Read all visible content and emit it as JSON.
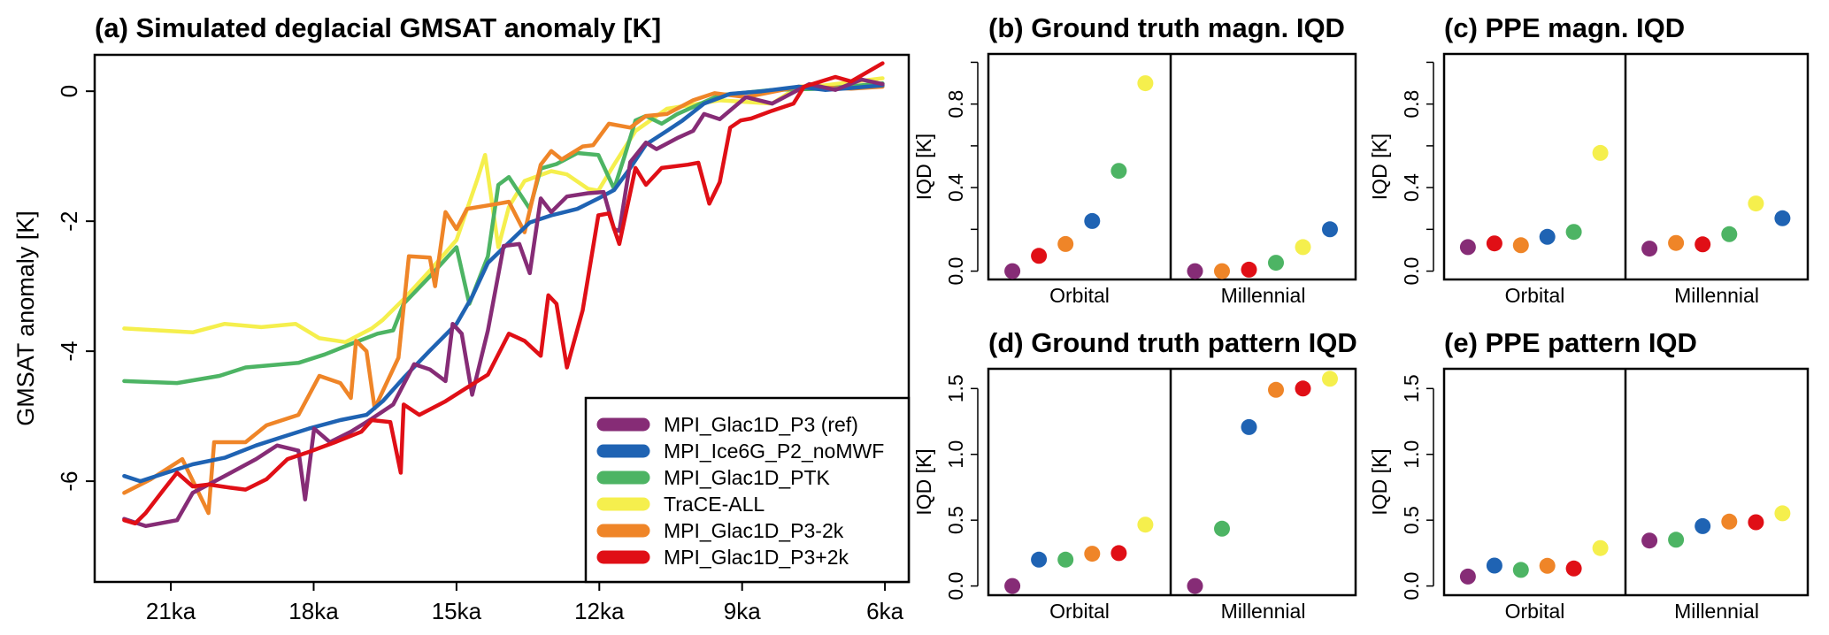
{
  "colors": {
    "MPI_Glac1D_P3 (ref)": "#862c76",
    "MPI_Ice6G_P2_noMWF": "#1f63b3",
    "MPI_Glac1D_PTK": "#4db464",
    "TraCE-ALL": "#f5ef4d",
    "MPI_Glac1D_P3-2k": "#ef8528",
    "MPI_Glac1D_P3+2k": "#e00f16"
  },
  "chart_data": [
    {
      "id": "a",
      "type": "line",
      "title": "(a) Simulated deglacial GMSAT anomaly [K]",
      "xlabel": "",
      "ylabel": "GMSAT anomaly [K]",
      "xlim": [
        22.6,
        5.5
      ],
      "ylim": [
        -7.55,
        0.56
      ],
      "xticks": [
        21,
        18,
        15,
        12,
        9,
        6
      ],
      "xtick_labels": [
        "21ka",
        "18ka",
        "15ka",
        "12ka",
        "9ka",
        "6ka"
      ],
      "yticks": [
        0,
        -2,
        -4,
        -6
      ],
      "ytick_labels": [
        "0",
        "-2",
        "-4",
        "-6"
      ],
      "grid": false,
      "legend_position": "bottom-right",
      "legend": [
        "MPI_Glac1D_P3 (ref)",
        "MPI_Ice6G_P2_noMWF",
        "MPI_Glac1D_PTK",
        "TraCE-ALL",
        "MPI_Glac1D_P3-2k",
        "MPI_Glac1D_P3+2k"
      ],
      "draw_order": [
        "TraCE-ALL",
        "MPI_Glac1D_PTK",
        "MPI_Glac1D_P3-2k",
        "MPI_Ice6G_P2_noMWF",
        "MPI_Glac1D_P3 (ref)",
        "MPI_Glac1D_P3+2k"
      ],
      "series": [
        {
          "name": "MPI_Glac1D_P3 (ref)",
          "x": [
            21.98,
            21.53,
            20.87,
            20.54,
            19.87,
            19.21,
            18.77,
            18.32,
            18.18,
            17.99,
            17.66,
            17.22,
            16.78,
            16.33,
            15.89,
            15.56,
            15.23,
            15.08,
            14.89,
            14.67,
            14.34,
            14.01,
            13.68,
            13.46,
            13.23,
            13.01,
            12.68,
            12.24,
            11.91,
            11.69,
            11.58,
            11.35,
            11.02,
            10.8,
            10.36,
            10.03,
            9.8,
            9.47,
            8.92,
            8.37,
            7.59,
            7.04,
            6.49,
            6.05
          ],
          "y": [
            -6.58,
            -6.69,
            -6.6,
            -6.18,
            -5.92,
            -5.66,
            -5.45,
            -5.53,
            -6.28,
            -5.19,
            -5.4,
            -5.24,
            -5.04,
            -4.82,
            -4.2,
            -4.28,
            -4.46,
            -3.58,
            -3.73,
            -4.67,
            -3.68,
            -2.38,
            -2.35,
            -2.8,
            -1.65,
            -1.86,
            -1.62,
            -1.57,
            -1.55,
            -2.12,
            -2.15,
            -1.09,
            -0.79,
            -0.89,
            -0.72,
            -0.61,
            -0.35,
            -0.43,
            -0.09,
            -0.19,
            0.11,
            0.02,
            0.18,
            0.11
          ]
        },
        {
          "name": "MPI_Ice6G_P2_noMWF",
          "x": [
            21.98,
            21.64,
            21.09,
            20.54,
            19.87,
            19.21,
            18.66,
            18.1,
            17.44,
            16.89,
            16.55,
            16.11,
            15.56,
            15.0,
            14.67,
            14.34,
            13.9,
            13.46,
            13.01,
            12.46,
            12.02,
            11.69,
            11.35,
            11.02,
            10.58,
            10.25,
            9.8,
            9.25,
            8.59,
            7.81,
            7.26,
            6.71,
            6.05
          ],
          "y": [
            -5.92,
            -6.0,
            -5.87,
            -5.74,
            -5.64,
            -5.45,
            -5.32,
            -5.19,
            -5.06,
            -4.98,
            -4.77,
            -4.41,
            -3.99,
            -3.58,
            -3.16,
            -2.64,
            -2.33,
            -2.02,
            -1.91,
            -1.81,
            -1.65,
            -1.52,
            -1.18,
            -0.82,
            -0.61,
            -0.45,
            -0.19,
            -0.04,
            0.0,
            0.07,
            0.02,
            0.05,
            0.09
          ]
        },
        {
          "name": "MPI_Glac1D_PTK",
          "x": [
            21.98,
            20.87,
            19.98,
            19.43,
            18.32,
            17.77,
            17.22,
            16.66,
            16.33,
            16.11,
            15.56,
            15.0,
            14.73,
            14.34,
            14.12,
            13.9,
            13.46,
            13.23,
            12.9,
            12.46,
            12.02,
            11.69,
            11.46,
            11.24,
            11.02,
            10.69,
            10.36,
            9.47,
            8.37,
            7.26,
            6.05
          ],
          "y": [
            -4.46,
            -4.49,
            -4.38,
            -4.25,
            -4.18,
            -4.05,
            -3.89,
            -3.73,
            -3.68,
            -3.27,
            -2.85,
            -2.4,
            -3.27,
            -2.54,
            -1.44,
            -1.32,
            -1.81,
            -1.19,
            -1.12,
            -0.95,
            -0.98,
            -1.5,
            -0.98,
            -0.45,
            -0.38,
            -0.5,
            -0.35,
            -0.06,
            0.02,
            0.04,
            0.12
          ]
        },
        {
          "name": "TraCE-ALL",
          "x": [
            21.98,
            20.54,
            19.87,
            19.1,
            18.38,
            17.88,
            17.33,
            16.78,
            16.55,
            16.11,
            15.56,
            15.0,
            14.56,
            14.4,
            14.12,
            13.9,
            13.57,
            13.01,
            12.68,
            12.24,
            12.02,
            11.69,
            11.24,
            10.58,
            9.47,
            8.37,
            7.81,
            7.26,
            6.05
          ],
          "y": [
            -3.65,
            -3.71,
            -3.58,
            -3.63,
            -3.58,
            -3.8,
            -3.86,
            -3.65,
            -3.52,
            -3.2,
            -2.76,
            -2.29,
            -1.35,
            -0.98,
            -2.4,
            -1.78,
            -1.38,
            -1.23,
            -1.28,
            -1.5,
            -1.53,
            -1.13,
            -0.61,
            -0.27,
            -0.14,
            -0.19,
            0.07,
            0.09,
            0.2
          ]
        },
        {
          "name": "MPI_Glac1D_P3-2k",
          "x": [
            21.98,
            21.42,
            20.76,
            20.21,
            20.09,
            19.43,
            18.99,
            18.32,
            17.88,
            17.44,
            17.22,
            17.11,
            16.89,
            16.72,
            16.22,
            16.0,
            15.56,
            15.45,
            15.23,
            15.0,
            14.78,
            14.12,
            13.9,
            13.57,
            13.23,
            13.01,
            12.79,
            12.35,
            12.13,
            11.8,
            11.35,
            11.02,
            10.58,
            10.03,
            9.58,
            8.92,
            7.81,
            6.71,
            6.05
          ],
          "y": [
            -6.18,
            -5.97,
            -5.66,
            -6.49,
            -5.4,
            -5.4,
            -5.14,
            -4.98,
            -4.38,
            -4.49,
            -4.72,
            -3.84,
            -4.0,
            -4.88,
            -4.1,
            -2.54,
            -2.56,
            -3.0,
            -1.86,
            -2.12,
            -1.81,
            -1.73,
            -1.7,
            -2.17,
            -1.13,
            -0.92,
            -1.05,
            -0.85,
            -0.83,
            -0.5,
            -0.56,
            -0.38,
            -0.35,
            -0.14,
            -0.03,
            -0.09,
            0.07,
            0.04,
            0.07
          ]
        },
        {
          "name": "MPI_Glac1D_P3+2k",
          "x": [
            21.98,
            21.75,
            21.53,
            21.15,
            20.87,
            20.54,
            20.21,
            19.76,
            19.43,
            18.99,
            18.55,
            18.1,
            17.55,
            17.0,
            16.78,
            16.39,
            16.17,
            16.11,
            15.78,
            15.23,
            14.78,
            14.34,
            13.9,
            13.57,
            13.23,
            13.07,
            12.9,
            12.68,
            12.35,
            12.02,
            11.8,
            11.58,
            11.24,
            11.02,
            10.69,
            10.14,
            9.92,
            9.69,
            9.47,
            9.25,
            9.03,
            8.81,
            8.37,
            7.92,
            7.7,
            7.04,
            6.71,
            6.05
          ],
          "y": [
            -6.6,
            -6.65,
            -6.49,
            -6.13,
            -5.87,
            -6.08,
            -6.05,
            -6.1,
            -6.13,
            -5.97,
            -5.66,
            -5.55,
            -5.4,
            -5.24,
            -5.06,
            -5.09,
            -5.87,
            -4.82,
            -4.98,
            -4.77,
            -4.56,
            -4.36,
            -3.73,
            -3.84,
            -4.07,
            -3.14,
            -3.27,
            -4.25,
            -3.37,
            -1.91,
            -1.88,
            -2.35,
            -1.18,
            -1.44,
            -1.18,
            -1.13,
            -1.1,
            -1.73,
            -1.4,
            -0.56,
            -0.45,
            -0.42,
            -0.3,
            -0.19,
            0.07,
            0.22,
            0.15,
            0.43
          ]
        }
      ]
    },
    {
      "id": "b",
      "type": "scatter",
      "title": "(b) Ground truth magn. IQD",
      "ylabel": "IQD [K]",
      "ylim": [
        -0.04,
        1.04
      ],
      "yticks": [
        0.0,
        0.2,
        0.4,
        0.6,
        0.8,
        1.0
      ],
      "ytick_labels": [
        "0.0",
        "",
        "0.4",
        "",
        "0.8",
        ""
      ],
      "categories": [
        "Orbital",
        "Millennial"
      ],
      "groups": [
        {
          "category": "Orbital",
          "points": [
            {
              "name": "MPI_Glac1D_P3 (ref)",
              "value": 0.0
            },
            {
              "name": "MPI_Glac1D_P3+2k",
              "value": 0.073
            },
            {
              "name": "MPI_Glac1D_P3-2k",
              "value": 0.13
            },
            {
              "name": "MPI_Ice6G_P2_noMWF",
              "value": 0.24
            },
            {
              "name": "MPI_Glac1D_PTK",
              "value": 0.48
            },
            {
              "name": "TraCE-ALL",
              "value": 0.9
            }
          ]
        },
        {
          "category": "Millennial",
          "points": [
            {
              "name": "MPI_Glac1D_P3 (ref)",
              "value": 0.0
            },
            {
              "name": "MPI_Glac1D_P3-2k",
              "value": 0.0
            },
            {
              "name": "MPI_Glac1D_P3+2k",
              "value": 0.007
            },
            {
              "name": "MPI_Glac1D_PTK",
              "value": 0.04
            },
            {
              "name": "TraCE-ALL",
              "value": 0.115
            },
            {
              "name": "MPI_Ice6G_P2_noMWF",
              "value": 0.2
            }
          ]
        }
      ]
    },
    {
      "id": "c",
      "type": "scatter",
      "title": "(c) PPE magn. IQD",
      "ylabel": "IQD [K]",
      "ylim": [
        -0.04,
        1.04
      ],
      "yticks": [
        0.0,
        0.2,
        0.4,
        0.6,
        0.8,
        1.0
      ],
      "ytick_labels": [
        "0.0",
        "",
        "0.4",
        "",
        "0.8",
        ""
      ],
      "categories": [
        "Orbital",
        "Millennial"
      ],
      "groups": [
        {
          "category": "Orbital",
          "points": [
            {
              "name": "MPI_Glac1D_P3 (ref)",
              "value": 0.115
            },
            {
              "name": "MPI_Glac1D_P3+2k",
              "value": 0.133
            },
            {
              "name": "MPI_Glac1D_P3-2k",
              "value": 0.124
            },
            {
              "name": "MPI_Ice6G_P2_noMWF",
              "value": 0.164
            },
            {
              "name": "MPI_Glac1D_PTK",
              "value": 0.188
            },
            {
              "name": "TraCE-ALL",
              "value": 0.566
            }
          ]
        },
        {
          "category": "Millennial",
          "points": [
            {
              "name": "MPI_Glac1D_P3 (ref)",
              "value": 0.108
            },
            {
              "name": "MPI_Glac1D_P3-2k",
              "value": 0.135
            },
            {
              "name": "MPI_Glac1D_P3+2k",
              "value": 0.128
            },
            {
              "name": "MPI_Glac1D_PTK",
              "value": 0.177
            },
            {
              "name": "TraCE-ALL",
              "value": 0.324
            },
            {
              "name": "MPI_Ice6G_P2_noMWF",
              "value": 0.253
            }
          ]
        }
      ]
    },
    {
      "id": "d",
      "type": "scatter",
      "title": "(d) Ground truth pattern IQD",
      "ylabel": "IQD [K]",
      "ylim": [
        -0.07,
        1.65
      ],
      "yticks": [
        0.0,
        0.5,
        1.0,
        1.5
      ],
      "ytick_labels": [
        "0.0",
        "0.5",
        "1.0",
        "1.5"
      ],
      "categories": [
        "Orbital",
        "Millennial"
      ],
      "groups": [
        {
          "category": "Orbital",
          "points": [
            {
              "name": "MPI_Glac1D_P3 (ref)",
              "value": 0.0
            },
            {
              "name": "MPI_Ice6G_P2_noMWF",
              "value": 0.2
            },
            {
              "name": "MPI_Glac1D_PTK",
              "value": 0.2
            },
            {
              "name": "MPI_Glac1D_P3-2k",
              "value": 0.245
            },
            {
              "name": "MPI_Glac1D_P3+2k",
              "value": 0.25
            },
            {
              "name": "TraCE-ALL",
              "value": 0.466
            }
          ]
        },
        {
          "category": "Millennial",
          "points": [
            {
              "name": "MPI_Glac1D_P3 (ref)",
              "value": 0.0
            },
            {
              "name": "MPI_Glac1D_PTK",
              "value": 0.435
            },
            {
              "name": "MPI_Ice6G_P2_noMWF",
              "value": 1.207
            },
            {
              "name": "MPI_Glac1D_P3-2k",
              "value": 1.49
            },
            {
              "name": "MPI_Glac1D_P3+2k",
              "value": 1.5
            },
            {
              "name": "TraCE-ALL",
              "value": 1.574
            }
          ]
        }
      ]
    },
    {
      "id": "e",
      "type": "scatter",
      "title": "(e) PPE pattern IQD",
      "ylabel": "IQD [K]",
      "ylim": [
        -0.07,
        1.65
      ],
      "yticks": [
        0.0,
        0.5,
        1.0,
        1.5
      ],
      "ytick_labels": [
        "0.0",
        "0.5",
        "1.0",
        "1.5"
      ],
      "categories": [
        "Orbital",
        "Millennial"
      ],
      "groups": [
        {
          "category": "Orbital",
          "points": [
            {
              "name": "MPI_Glac1D_P3 (ref)",
              "value": 0.072
            },
            {
              "name": "MPI_Ice6G_P2_noMWF",
              "value": 0.155
            },
            {
              "name": "MPI_Glac1D_PTK",
              "value": 0.122
            },
            {
              "name": "MPI_Glac1D_P3-2k",
              "value": 0.153
            },
            {
              "name": "MPI_Glac1D_P3+2k",
              "value": 0.133
            },
            {
              "name": "TraCE-ALL",
              "value": 0.288
            }
          ]
        },
        {
          "category": "Millennial",
          "points": [
            {
              "name": "MPI_Glac1D_P3 (ref)",
              "value": 0.345
            },
            {
              "name": "MPI_Glac1D_PTK",
              "value": 0.351
            },
            {
              "name": "MPI_Ice6G_P2_noMWF",
              "value": 0.455
            },
            {
              "name": "MPI_Glac1D_P3-2k",
              "value": 0.489
            },
            {
              "name": "MPI_Glac1D_P3+2k",
              "value": 0.484
            },
            {
              "name": "TraCE-ALL",
              "value": 0.552
            }
          ]
        }
      ]
    }
  ]
}
